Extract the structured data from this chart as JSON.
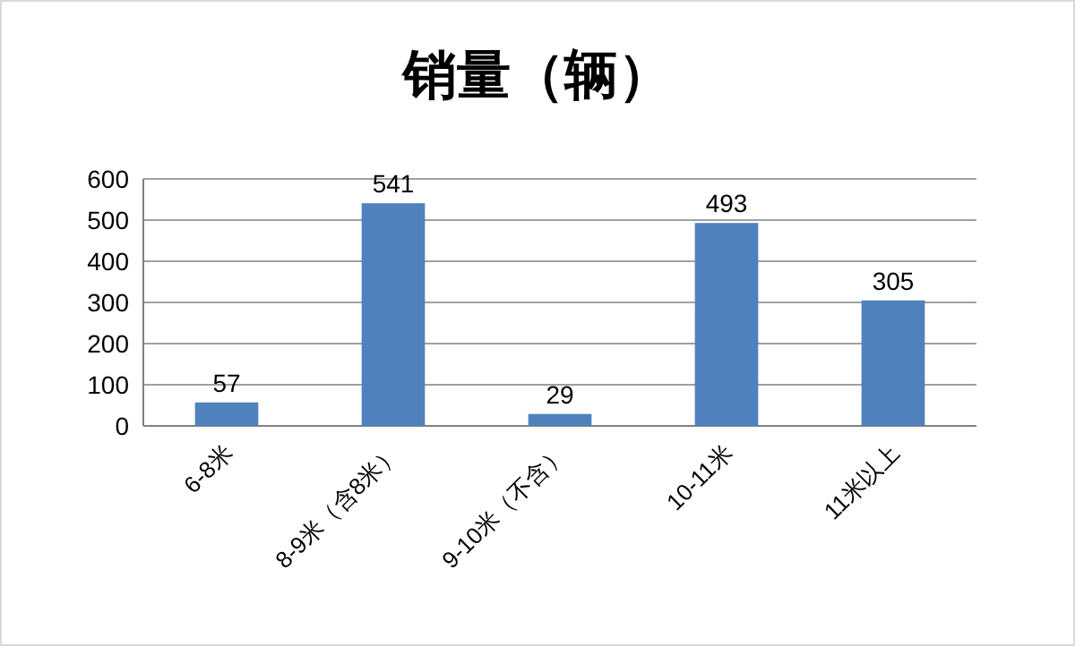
{
  "chart_data": {
    "type": "bar",
    "title": "销量（辆）",
    "categories": [
      "6-8米",
      "8-9米（含8米）",
      "9-10米（不含）",
      "10-11米",
      "11米以上"
    ],
    "values": [
      57,
      541,
      29,
      493,
      305
    ],
    "color": "#4f81bd",
    "ylim": [
      0,
      600
    ],
    "yticks": [
      0,
      100,
      200,
      300,
      400,
      500,
      600
    ],
    "grid": "y",
    "data_labels": true
  }
}
